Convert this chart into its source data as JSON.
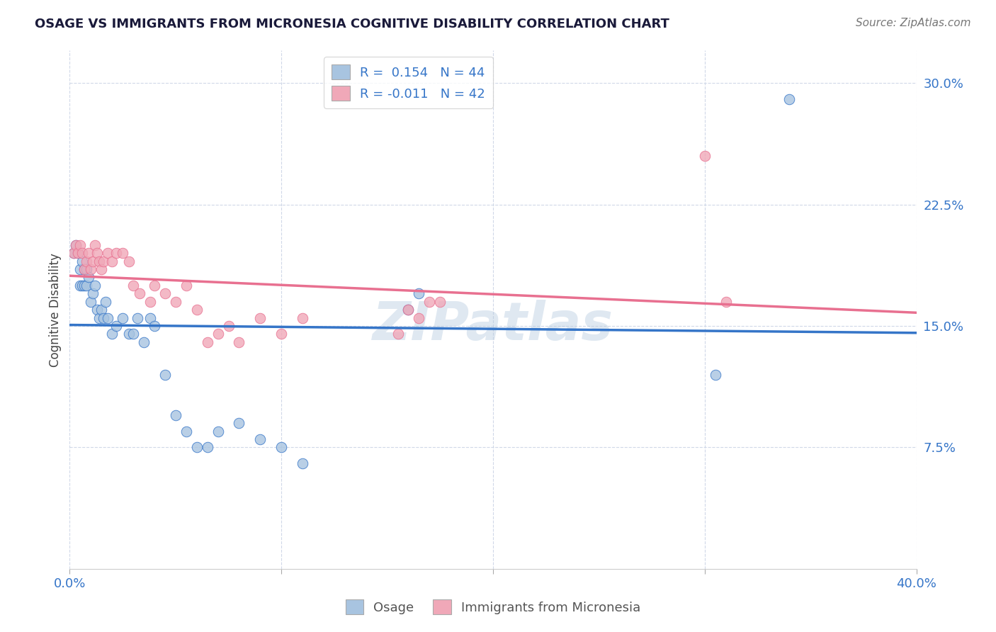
{
  "title": "OSAGE VS IMMIGRANTS FROM MICRONESIA COGNITIVE DISABILITY CORRELATION CHART",
  "source": "Source: ZipAtlas.com",
  "ylabel": "Cognitive Disability",
  "xlim": [
    0.0,
    0.4
  ],
  "ylim": [
    0.0,
    0.32
  ],
  "yticks": [
    0.075,
    0.15,
    0.225,
    0.3
  ],
  "ytick_labels": [
    "7.5%",
    "15.0%",
    "22.5%",
    "30.0%"
  ],
  "xticks": [
    0.0,
    0.1,
    0.2,
    0.3,
    0.4
  ],
  "xtick_labels": [
    "0.0%",
    "",
    "",
    "",
    "40.0%"
  ],
  "legend_R1": "R =  0.154",
  "legend_N1": "N = 44",
  "legend_R2": "R = -0.011",
  "legend_N2": "N = 42",
  "color_blue": "#a8c4e0",
  "color_pink": "#f0a8b8",
  "line_color_blue": "#3575c8",
  "line_color_pink": "#e87090",
  "watermark": "ZIPatlas",
  "background_color": "#ffffff",
  "plot_bg_color": "#ffffff",
  "grid_color": "#d0d8e8",
  "osage_x": [
    0.002,
    0.003,
    0.004,
    0.005,
    0.005,
    0.006,
    0.006,
    0.007,
    0.007,
    0.008,
    0.008,
    0.009,
    0.01,
    0.011,
    0.012,
    0.013,
    0.014,
    0.015,
    0.016,
    0.017,
    0.018,
    0.02,
    0.022,
    0.025,
    0.028,
    0.03,
    0.032,
    0.035,
    0.038,
    0.04,
    0.045,
    0.05,
    0.055,
    0.06,
    0.065,
    0.07,
    0.08,
    0.09,
    0.1,
    0.11,
    0.16,
    0.165,
    0.305,
    0.34
  ],
  "osage_y": [
    0.195,
    0.2,
    0.195,
    0.185,
    0.175,
    0.19,
    0.175,
    0.185,
    0.175,
    0.185,
    0.175,
    0.18,
    0.165,
    0.17,
    0.175,
    0.16,
    0.155,
    0.16,
    0.155,
    0.165,
    0.155,
    0.145,
    0.15,
    0.155,
    0.145,
    0.145,
    0.155,
    0.14,
    0.155,
    0.15,
    0.12,
    0.095,
    0.085,
    0.075,
    0.075,
    0.085,
    0.09,
    0.08,
    0.075,
    0.065,
    0.16,
    0.17,
    0.12,
    0.29
  ],
  "micronesia_x": [
    0.002,
    0.003,
    0.004,
    0.005,
    0.006,
    0.007,
    0.008,
    0.009,
    0.01,
    0.011,
    0.012,
    0.013,
    0.014,
    0.015,
    0.016,
    0.018,
    0.02,
    0.022,
    0.025,
    0.028,
    0.03,
    0.033,
    0.038,
    0.04,
    0.045,
    0.05,
    0.055,
    0.06,
    0.065,
    0.07,
    0.075,
    0.08,
    0.09,
    0.1,
    0.11,
    0.155,
    0.16,
    0.165,
    0.17,
    0.175,
    0.3,
    0.31
  ],
  "micronesia_y": [
    0.195,
    0.2,
    0.195,
    0.2,
    0.195,
    0.185,
    0.19,
    0.195,
    0.185,
    0.19,
    0.2,
    0.195,
    0.19,
    0.185,
    0.19,
    0.195,
    0.19,
    0.195,
    0.195,
    0.19,
    0.175,
    0.17,
    0.165,
    0.175,
    0.17,
    0.165,
    0.175,
    0.16,
    0.14,
    0.145,
    0.15,
    0.14,
    0.155,
    0.145,
    0.155,
    0.145,
    0.16,
    0.155,
    0.165,
    0.165,
    0.255,
    0.165
  ]
}
